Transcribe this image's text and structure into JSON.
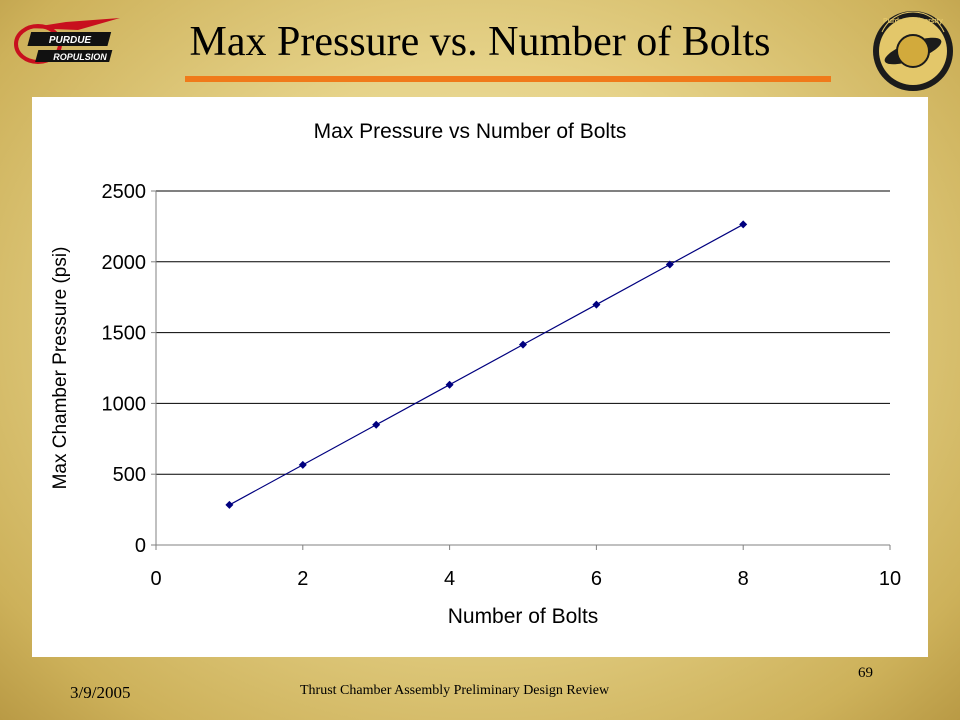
{
  "slide": {
    "title": "Max Pressure vs. Number of Bolts",
    "date": "3/9/2005",
    "footer": "Thrust Chamber Assembly Preliminary Design Review",
    "page_number": "69",
    "accent_color": "#f07a1a"
  },
  "logos": {
    "left": {
      "icon": "purdue-propulsion-logo",
      "text": "PURDUE PROPULSION"
    },
    "right": {
      "icon": "purdue-aeronautics-seal",
      "text": "Purdue University Aeronautics & Astronautics"
    }
  },
  "chart_data": {
    "type": "line",
    "title": "Max Pressure vs Number of Bolts",
    "xlabel": "Number of Bolts",
    "ylabel": "Max Chamber Pressure (psi)",
    "xlim": [
      0,
      10
    ],
    "ylim": [
      0,
      2500
    ],
    "xticks": [
      "0",
      "2",
      "4",
      "6",
      "8",
      "10"
    ],
    "yticks": [
      "0",
      "500",
      "1000",
      "1500",
      "2000",
      "2500"
    ],
    "grid": "horizontal",
    "legend": "none",
    "series": [
      {
        "color": "#00007f",
        "x": [
          1,
          2,
          3,
          4,
          5,
          6,
          7,
          8
        ],
        "y": [
          283,
          566,
          849,
          1132,
          1415,
          1698,
          1981,
          2264
        ]
      }
    ]
  }
}
